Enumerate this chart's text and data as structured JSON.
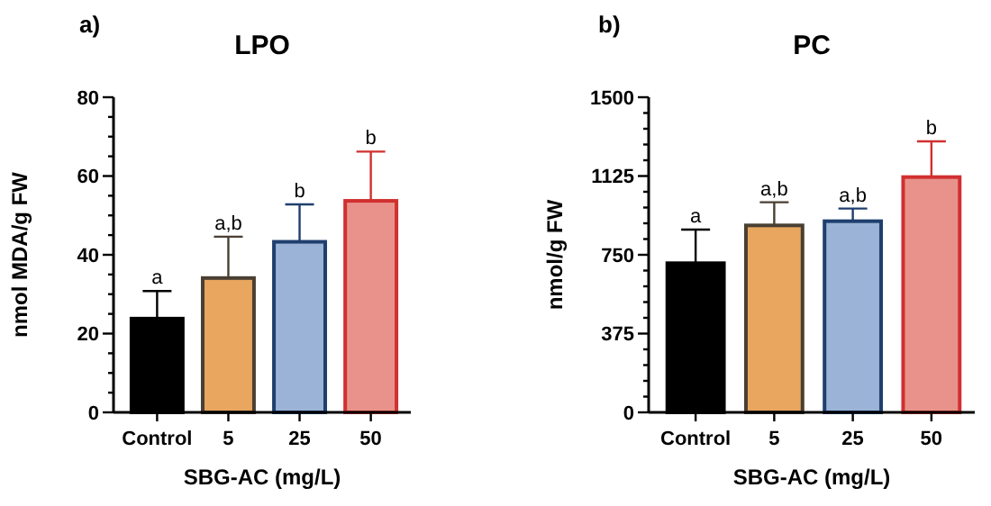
{
  "chart_data": [
    {
      "type": "bar",
      "title": "LPO",
      "xlabel": "SBG-AC (mg/L)",
      "ylabel": "nmol MDA/g FW",
      "categories": [
        "Control",
        "5",
        "25",
        "50"
      ],
      "values": [
        23.8,
        34.1,
        43.3,
        53.7
      ],
      "errors": [
        7,
        10.5,
        9.5,
        12.5
      ],
      "colors": [
        "#000000",
        "#e8a65e",
        "#9ab3d6",
        "#e8928b"
      ],
      "ylim": [
        0,
        80
      ],
      "yticks": [
        0,
        {
          "value": 5,
          "label": null
        },
        {
          "value": 10,
          "label": null
        },
        {
          "value": 15,
          "label": null
        },
        20,
        {
          "value": 25,
          "label": null
        },
        {
          "value": 30,
          "label": null
        },
        {
          "value": 35,
          "label": null
        },
        40,
        {
          "value": 45,
          "label": null
        },
        {
          "value": 50,
          "label": null
        },
        {
          "value": 55,
          "label": null
        },
        60,
        {
          "value": 65,
          "label": null
        },
        {
          "value": 70,
          "label": null
        },
        {
          "value": 75,
          "label": null
        },
        80
      ],
      "annotations": [
        "a)",
        {
          "text": "a",
          "x": "Control",
          "y": 30.8
        },
        {
          "text": "a,b",
          "x": "5",
          "y": 44.6
        },
        {
          "text": "b",
          "x": "25",
          "y": 52.8
        },
        {
          "text": "b",
          "x": "50",
          "y": 66.2
        }
      ]
    },
    {
      "type": "bar",
      "title": "PC",
      "xlabel": "SBG-AC (mg/L)",
      "ylabel": "nmol/g FW",
      "categories": [
        "Control",
        "5",
        "25",
        "50"
      ],
      "values": [
        710,
        890,
        910,
        1120
      ],
      "errors": [
        160,
        110,
        60,
        170
      ],
      "colors": [
        "#000000",
        "#e8a65e",
        "#9ab3d6",
        "#e8928b"
      ],
      "ylim": [
        0,
        1500
      ],
      "yticks": [
        0,
        {
          "value": 75,
          "label": null
        },
        {
          "value": 150,
          "label": null
        },
        {
          "value": 225,
          "label": null
        },
        {
          "value": 300,
          "label": null
        },
        375,
        {
          "value": 450,
          "label": null
        },
        {
          "value": 525,
          "label": null
        },
        {
          "value": 600,
          "label": null
        },
        {
          "value": 675,
          "label": null
        },
        750,
        {
          "value": 825,
          "label": null
        },
        {
          "value": 900,
          "label": null
        },
        {
          "value": 975,
          "label": null
        },
        {
          "value": 1050,
          "label": null
        },
        1125,
        {
          "value": 1200,
          "label": null
        },
        {
          "value": 1275,
          "label": null
        },
        {
          "value": 1350,
          "label": null
        },
        {
          "value": 1425,
          "label": null
        },
        1500
      ],
      "annotations": [
        "b)",
        {
          "text": "a",
          "x": "Control",
          "y": 870
        },
        {
          "text": "a,b",
          "x": "5",
          "y": 1000
        },
        {
          "text": "a,b",
          "x": "25",
          "y": 970
        },
        {
          "text": "b",
          "x": "50",
          "y": 1290
        }
      ]
    }
  ]
}
